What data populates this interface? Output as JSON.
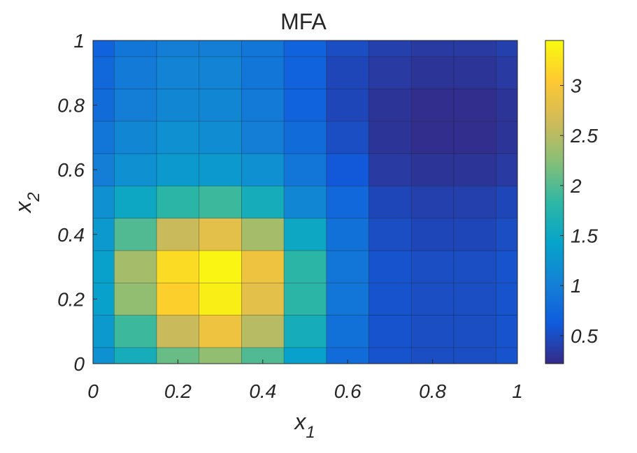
{
  "chart_data": {
    "type": "heatmap",
    "title": "MFA",
    "xlabel": {
      "text": "x",
      "subscript": "1"
    },
    "ylabel": {
      "text": "x",
      "subscript": "2"
    },
    "x": [
      0,
      0.1,
      0.2,
      0.3,
      0.4,
      0.5,
      0.6,
      0.7,
      0.8,
      0.9,
      1
    ],
    "y": [
      0,
      0.1,
      0.2,
      0.3,
      0.4,
      0.5,
      0.6,
      0.7,
      0.8,
      0.9,
      1
    ],
    "z": [
      [
        1.2,
        1.6,
        2.1,
        2.3,
        2.0,
        1.4,
        0.8,
        0.55,
        0.5,
        0.5,
        0.55
      ],
      [
        1.3,
        1.9,
        2.6,
        2.9,
        2.5,
        1.6,
        0.85,
        0.55,
        0.5,
        0.5,
        0.55
      ],
      [
        1.4,
        2.3,
        3.1,
        3.35,
        2.8,
        1.8,
        0.9,
        0.55,
        0.5,
        0.5,
        0.55
      ],
      [
        1.4,
        2.4,
        3.2,
        3.4,
        2.9,
        1.8,
        0.9,
        0.55,
        0.5,
        0.5,
        0.55
      ],
      [
        1.3,
        2.0,
        2.6,
        2.8,
        2.4,
        1.5,
        0.85,
        0.5,
        0.45,
        0.45,
        0.5
      ],
      [
        1.2,
        1.5,
        1.8,
        1.9,
        1.6,
        1.1,
        0.75,
        0.45,
        0.4,
        0.4,
        0.45
      ],
      [
        1.0,
        1.2,
        1.3,
        1.3,
        1.2,
        0.9,
        0.6,
        0.35,
        0.3,
        0.3,
        0.35
      ],
      [
        0.9,
        1.1,
        1.2,
        1.15,
        1.0,
        0.8,
        0.5,
        0.3,
        0.25,
        0.25,
        0.3
      ],
      [
        0.8,
        1.0,
        1.1,
        1.1,
        0.95,
        0.7,
        0.45,
        0.3,
        0.25,
        0.25,
        0.3
      ],
      [
        0.75,
        0.95,
        1.05,
        1.05,
        0.9,
        0.7,
        0.45,
        0.35,
        0.3,
        0.3,
        0.35
      ],
      [
        0.7,
        0.9,
        1.0,
        1.0,
        0.9,
        0.7,
        0.5,
        0.4,
        0.35,
        0.35,
        0.4
      ]
    ],
    "xlim": [
      0,
      1
    ],
    "ylim": [
      0,
      1
    ],
    "xticks": [
      0,
      0.2,
      0.4,
      0.6,
      0.8,
      1
    ],
    "yticks": [
      0,
      0.2,
      0.4,
      0.6,
      0.8,
      1
    ],
    "colormap": "parula",
    "clim": [
      0.22,
      3.45
    ],
    "cticks": [
      0.5,
      1,
      1.5,
      2,
      2.5,
      3
    ]
  }
}
